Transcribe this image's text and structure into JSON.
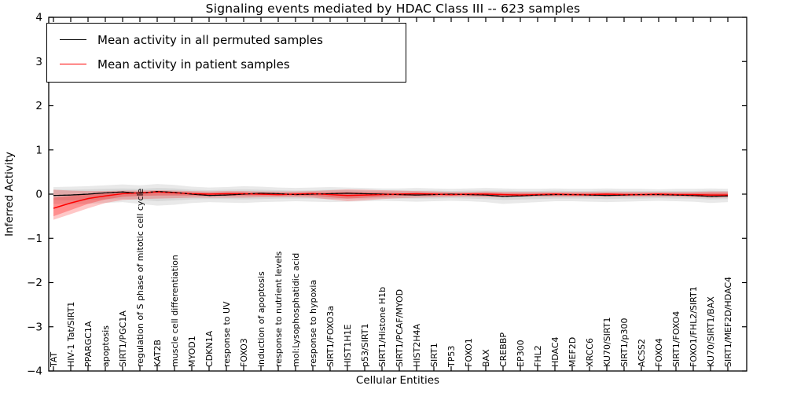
{
  "chart_data": {
    "type": "line",
    "title": "Signaling events mediated by HDAC Class III -- 623 samples",
    "xlabel": "Cellular Entities",
    "ylabel": "Inferred Activity",
    "ylim": [
      -4,
      4
    ],
    "grid": false,
    "legend_position": "upper left",
    "yticks": [
      {
        "value": -4,
        "label": "−4"
      },
      {
        "value": -3,
        "label": "−3"
      },
      {
        "value": -2,
        "label": "−2"
      },
      {
        "value": -1,
        "label": "−1"
      },
      {
        "value": 0,
        "label": "0"
      },
      {
        "value": 1,
        "label": "1"
      },
      {
        "value": 2,
        "label": "2"
      },
      {
        "value": 3,
        "label": "3"
      },
      {
        "value": 4,
        "label": "4"
      }
    ],
    "categories": [
      "TAT",
      "HIV-1 Tat/SIRT1",
      "PPARGC1A",
      "apoptosis",
      "SIRT1/PGC1A",
      "regulation of S phase of mitotic cell cycle",
      "KAT2B",
      "muscle cell differentiation",
      "MYOD1",
      "CDKN1A",
      "response to UV",
      "FOXO3",
      "induction of apoptosis",
      "response to nutrient levels",
      "mol:Lysophosphatidic acid",
      "response to hypoxia",
      "SIRT1/FOXO3a",
      "HIST1H1E",
      "p53/SIRT1",
      "SIRT1/Histone H1b",
      "SIRT1/PCAF/MYOD",
      "HIST2H4A",
      "SIRT1",
      "TP53",
      "FOXO1",
      "BAX",
      "CREBBP",
      "EP300",
      "FHL2",
      "HDAC4",
      "MEF2D",
      "XRCC6",
      "KU70/SIRT1",
      "SIRT1/p300",
      "ACSS2",
      "FOXO4",
      "SIRT1/FOXO4",
      "FOXO1/FHL2/SIRT1",
      "KU70/SIRT1/BAX",
      "SIRT1/MEF2D/HDAC4"
    ],
    "series": [
      {
        "name": "Mean activity in all permuted samples",
        "color": "#000000",
        "style": "solid-with-dashed-overlay",
        "values": [
          -0.03,
          -0.02,
          0.0,
          0.03,
          0.05,
          0.02,
          0.06,
          0.04,
          0.0,
          -0.03,
          -0.02,
          0.0,
          0.02,
          0.01,
          -0.01,
          0.0,
          0.01,
          0.02,
          0.01,
          0.0,
          -0.01,
          -0.02,
          -0.01,
          0.0,
          -0.01,
          -0.02,
          -0.05,
          -0.04,
          -0.02,
          -0.01,
          -0.01,
          -0.02,
          -0.03,
          -0.02,
          -0.01,
          -0.01,
          -0.02,
          -0.03,
          -0.05,
          -0.04
        ]
      },
      {
        "name": "Mean activity in patient samples",
        "color": "#ff0000",
        "style": "solid",
        "values": [
          -0.32,
          -0.2,
          -0.1,
          -0.04,
          0.01,
          0.03,
          0.05,
          0.03,
          0.01,
          0.0,
          0.01,
          0.01,
          0.0,
          -0.01,
          0.0,
          0.01,
          -0.01,
          -0.03,
          -0.02,
          -0.01,
          0.0,
          0.01,
          0.0,
          -0.01,
          0.0,
          0.0,
          -0.01,
          -0.02,
          -0.01,
          0.0,
          -0.01,
          -0.01,
          0.0,
          -0.01,
          -0.01,
          0.0,
          -0.01,
          -0.01,
          -0.02,
          -0.02
        ]
      }
    ],
    "bands": [
      {
        "name": "permuted-range-outer",
        "color": "#999999",
        "opacity": 0.22,
        "upper": [
          0.16,
          0.17,
          0.18,
          0.2,
          0.22,
          0.2,
          0.23,
          0.21,
          0.17,
          0.15,
          0.16,
          0.18,
          0.17,
          0.15,
          0.14,
          0.15,
          0.16,
          0.15,
          0.14,
          0.13,
          0.13,
          0.14,
          0.13,
          0.12,
          0.13,
          0.14,
          0.13,
          0.12,
          0.12,
          0.13,
          0.12,
          0.12,
          0.13,
          0.12,
          0.12,
          0.11,
          0.12,
          0.12,
          0.13,
          0.12
        ],
        "lower": [
          -0.22,
          -0.23,
          -0.22,
          -0.2,
          -0.18,
          -0.22,
          -0.26,
          -0.24,
          -0.2,
          -0.18,
          -0.19,
          -0.2,
          -0.18,
          -0.17,
          -0.16,
          -0.17,
          -0.18,
          -0.17,
          -0.16,
          -0.15,
          -0.16,
          -0.17,
          -0.16,
          -0.15,
          -0.16,
          -0.18,
          -0.22,
          -0.2,
          -0.18,
          -0.16,
          -0.16,
          -0.17,
          -0.18,
          -0.17,
          -0.16,
          -0.15,
          -0.16,
          -0.17,
          -0.2,
          -0.18
        ]
      },
      {
        "name": "permuted-range-inner",
        "color": "#999999",
        "opacity": 0.22,
        "upper": [
          0.1,
          0.1,
          0.11,
          0.12,
          0.13,
          0.12,
          0.14,
          0.13,
          0.1,
          0.09,
          0.1,
          0.11,
          0.1,
          0.09,
          0.08,
          0.09,
          0.1,
          0.09,
          0.08,
          0.08,
          0.08,
          0.08,
          0.08,
          0.07,
          0.08,
          0.08,
          0.08,
          0.07,
          0.07,
          0.08,
          0.07,
          0.07,
          0.08,
          0.07,
          0.07,
          0.07,
          0.07,
          0.07,
          0.08,
          0.07
        ],
        "lower": [
          -0.13,
          -0.14,
          -0.13,
          -0.12,
          -0.11,
          -0.13,
          -0.16,
          -0.14,
          -0.12,
          -0.11,
          -0.11,
          -0.12,
          -0.11,
          -0.1,
          -0.1,
          -0.1,
          -0.11,
          -0.1,
          -0.1,
          -0.09,
          -0.1,
          -0.1,
          -0.1,
          -0.09,
          -0.1,
          -0.11,
          -0.13,
          -0.12,
          -0.11,
          -0.1,
          -0.1,
          -0.1,
          -0.11,
          -0.1,
          -0.1,
          -0.09,
          -0.1,
          -0.1,
          -0.12,
          -0.11
        ]
      },
      {
        "name": "patient-range-outer",
        "color": "#ff0000",
        "opacity": 0.22,
        "upper": [
          0.1,
          0.08,
          0.07,
          0.07,
          0.08,
          0.08,
          0.09,
          0.08,
          0.07,
          0.06,
          0.07,
          0.07,
          0.06,
          0.06,
          0.06,
          0.07,
          0.09,
          0.11,
          0.1,
          0.09,
          0.08,
          0.07,
          0.06,
          0.05,
          0.05,
          0.06,
          0.05,
          0.05,
          0.05,
          0.05,
          0.05,
          0.05,
          0.05,
          0.05,
          0.05,
          0.05,
          0.05,
          0.05,
          0.06,
          0.06
        ],
        "lower": [
          -0.58,
          -0.45,
          -0.32,
          -0.2,
          -0.13,
          -0.11,
          -0.1,
          -0.09,
          -0.08,
          -0.08,
          -0.08,
          -0.08,
          -0.07,
          -0.07,
          -0.07,
          -0.08,
          -0.12,
          -0.16,
          -0.14,
          -0.11,
          -0.09,
          -0.08,
          -0.07,
          -0.06,
          -0.06,
          -0.07,
          -0.07,
          -0.06,
          -0.06,
          -0.06,
          -0.06,
          -0.06,
          -0.06,
          -0.06,
          -0.06,
          -0.06,
          -0.06,
          -0.07,
          -0.08,
          -0.08
        ]
      },
      {
        "name": "patient-range-inner",
        "color": "#ff0000",
        "opacity": 0.28,
        "upper": [
          -0.08,
          -0.04,
          0.0,
          0.02,
          0.04,
          0.05,
          0.06,
          0.05,
          0.04,
          0.03,
          0.04,
          0.04,
          0.03,
          0.03,
          0.03,
          0.04,
          0.04,
          0.05,
          0.04,
          0.04,
          0.03,
          0.03,
          0.03,
          0.02,
          0.02,
          0.03,
          0.02,
          0.02,
          0.02,
          0.02,
          0.02,
          0.02,
          0.02,
          0.02,
          0.02,
          0.02,
          0.02,
          0.02,
          0.03,
          0.03
        ],
        "lower": [
          -0.5,
          -0.36,
          -0.22,
          -0.12,
          -0.06,
          -0.04,
          -0.03,
          -0.03,
          -0.03,
          -0.03,
          -0.03,
          -0.03,
          -0.03,
          -0.03,
          -0.03,
          -0.04,
          -0.07,
          -0.1,
          -0.08,
          -0.06,
          -0.04,
          -0.03,
          -0.03,
          -0.03,
          -0.03,
          -0.03,
          -0.04,
          -0.03,
          -0.03,
          -0.03,
          -0.03,
          -0.03,
          -0.03,
          -0.03,
          -0.03,
          -0.03,
          -0.03,
          -0.03,
          -0.04,
          -0.04
        ]
      }
    ]
  }
}
